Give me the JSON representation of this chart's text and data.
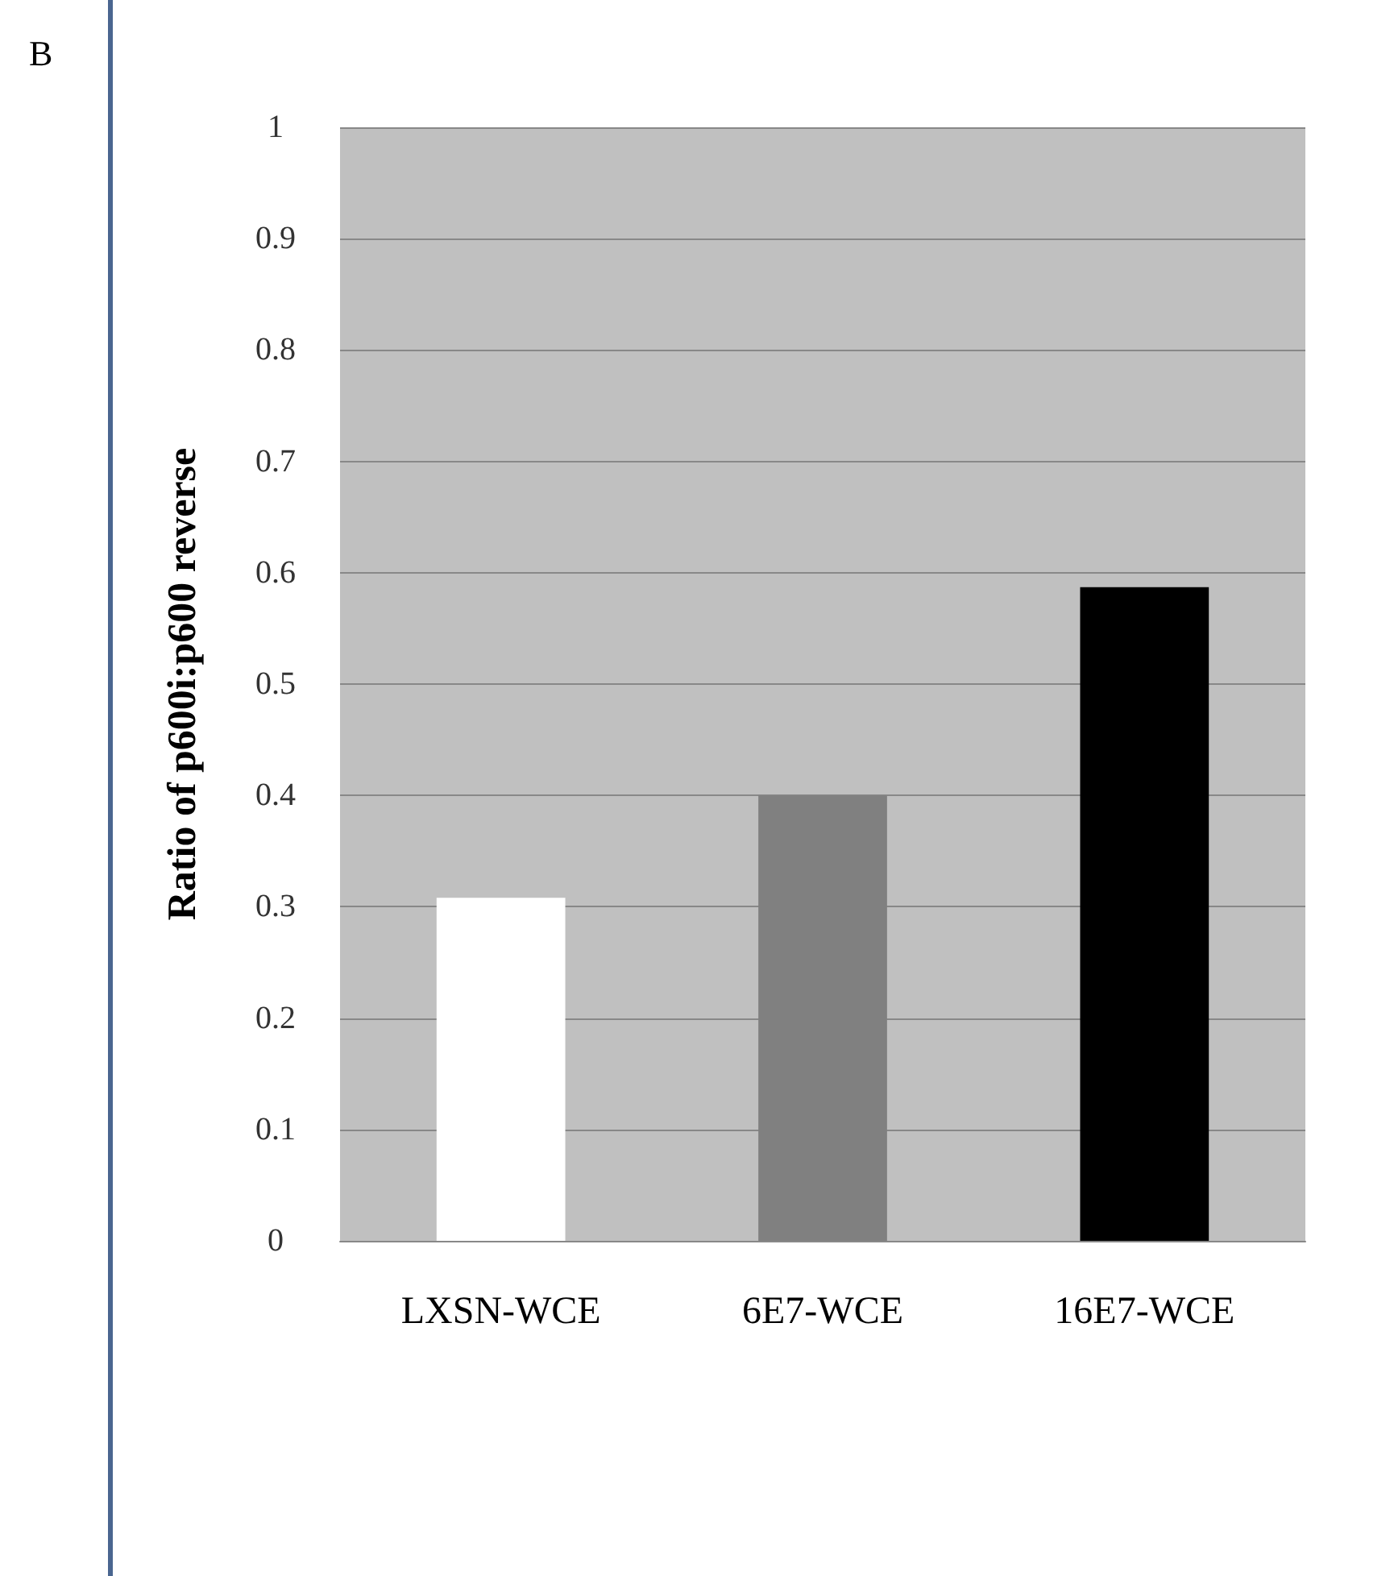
{
  "chart_data": {
    "type": "bar",
    "ylabel": "Ratio of p600i:p600 reverse",
    "annotations": [
      "B"
    ],
    "categories": [
      "LXSN-WCE",
      "6E7-WCE",
      "16E7-WCE"
    ],
    "values": [
      0.308,
      0.4,
      0.587
    ],
    "colors": [
      "#ffffff",
      "#808080",
      "#000000"
    ],
    "ylim": [
      0,
      1
    ],
    "yticks": [
      0,
      0.1,
      0.2,
      0.3,
      0.4,
      0.5,
      0.6,
      0.7,
      0.8,
      0.9,
      1
    ],
    "grid": "y"
  }
}
